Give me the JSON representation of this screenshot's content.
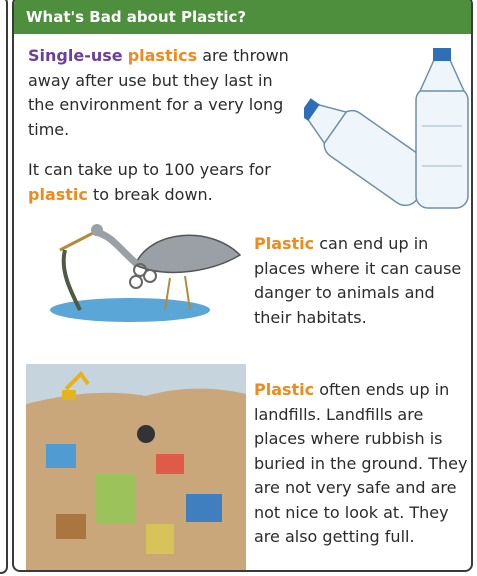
{
  "header": {
    "title": "What's Bad about Plastic?"
  },
  "intro": {
    "highlight_1": "Single-use",
    "highlight_2": "plastics",
    "text": "are thrown away after use but they last in the environment for a very long time."
  },
  "fact": {
    "text_1": "It can take up to 100 years for",
    "highlight": "plastic",
    "text_2": "to break down."
  },
  "animals": {
    "highlight": "Plastic",
    "text": "can end up in places where it can cause danger to animals and their habitats."
  },
  "landfills": {
    "highlight": "Plastic",
    "text": "often ends up in landfills. Landfills are places where rubbish is buried in the ground. They are not very safe and are not nice to look at. They are also getting full."
  }
}
